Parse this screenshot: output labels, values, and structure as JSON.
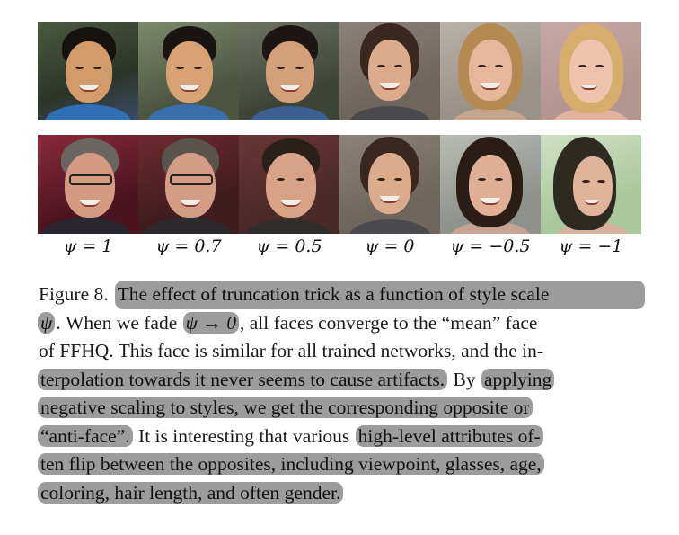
{
  "figure": {
    "rows": [
      {
        "faces": [
          {
            "icon": "face-man-smiling-blue-shirt"
          },
          {
            "icon": "face-man-smiling-blue-shirt"
          },
          {
            "icon": "face-man-smiling-blue-shirt"
          },
          {
            "icon": "face-woman-mean-face"
          },
          {
            "icon": "face-woman-blonde"
          },
          {
            "icon": "face-woman-blonde"
          }
        ]
      },
      {
        "faces": [
          {
            "icon": "face-man-glasses-grey-hair"
          },
          {
            "icon": "face-man-glasses-grey-hair"
          },
          {
            "icon": "face-man-dark-hair"
          },
          {
            "icon": "face-woman-mean-face"
          },
          {
            "icon": "face-woman-dark-hair"
          },
          {
            "icon": "face-woman-dark-hair-profile"
          }
        ]
      }
    ],
    "psi_labels": [
      "ψ = 1",
      "ψ = 0.7",
      "ψ = 0.5",
      "ψ = 0",
      "ψ = −0.5",
      "ψ = −1"
    ]
  },
  "caption": {
    "l1_a": "Figure 8.",
    "l1_b": "The effect of truncation trick as a function of style scale",
    "l2_a": "ψ",
    "l2_b": ". When we fade",
    "l2_c": "ψ → 0",
    "l2_d": ", all faces converge to the “mean” face",
    "l3": "of FFHQ. This face is similar for all trained networks, and the in-",
    "l4_a": "terpolation towards it never seems to cause artifacts.",
    "l4_b": "By",
    "l4_c": "applying",
    "l5": "negative scaling to styles, we get the corresponding opposite or",
    "l6_a": "“anti-face”.",
    "l6_b": "It is interesting that various",
    "l6_c": "high-level attributes of-",
    "l7": "ten flip between the opposites, including viewpoint, glasses, age,",
    "l8": "coloring, hair length, and often gender."
  },
  "colors": {
    "highlight": "#9c9c9c",
    "text": "#1a1a1a"
  }
}
